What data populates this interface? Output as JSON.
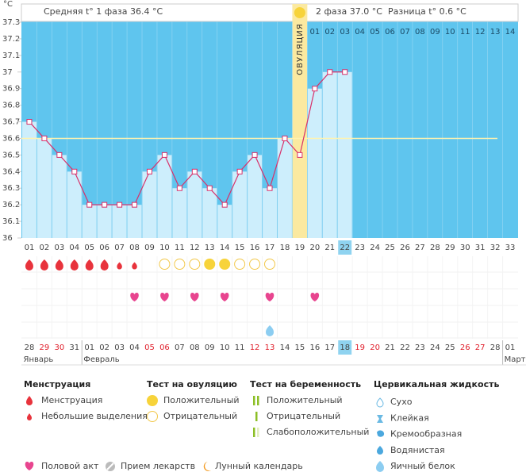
{
  "chart_data": {
    "type": "line",
    "y_unit": "°C",
    "phase1": "Средняя t° 1 фаза 36.4 °C",
    "phase2": "2 фаза 37.0 °C",
    "difference": "Разница t° 0.6 °C",
    "ovulation_label": "ОВУЛЯЦИЯ",
    "ovulation_day": 19,
    "current_day": 22,
    "categories": [
      "01",
      "02",
      "03",
      "04",
      "05",
      "06",
      "07",
      "08",
      "09",
      "10",
      "11",
      "12",
      "13",
      "14",
      "15",
      "16",
      "17",
      "18",
      "19",
      "20",
      "21",
      "22",
      "23",
      "24",
      "25",
      "26",
      "27",
      "28",
      "29",
      "30",
      "31",
      "32",
      "33"
    ],
    "values": [
      36.7,
      36.6,
      36.5,
      36.4,
      36.2,
      36.2,
      36.2,
      36.2,
      36.4,
      36.5,
      36.3,
      36.4,
      36.3,
      36.2,
      36.4,
      36.5,
      36.3,
      36.6,
      36.5,
      36.9,
      37.0,
      37.0,
      null,
      null,
      null,
      null,
      null,
      null,
      null,
      null,
      null,
      null,
      null
    ],
    "color": "#d8306a",
    "coverline": 36.6,
    "ylim": [
      36,
      37.3
    ],
    "yticks": [
      36,
      36.1,
      36.2,
      36.3,
      36.4,
      36.5,
      36.6,
      36.7,
      36.8,
      36.9,
      37,
      37.1,
      37.2,
      37.3
    ],
    "phase2_days": [
      "01",
      "02",
      "03",
      "04",
      "05",
      "06",
      "07",
      "08",
      "09",
      "10",
      "11",
      "12",
      "13",
      "14"
    ],
    "dates": [
      "28",
      "29",
      "30",
      "31",
      "01",
      "02",
      "03",
      "04",
      "05",
      "06",
      "07",
      "08",
      "09",
      "10",
      "11",
      "12",
      "13",
      "14",
      "15",
      "16",
      "17",
      "18",
      "19",
      "20",
      "21",
      "22",
      "23",
      "24",
      "25",
      "26",
      "27",
      "28",
      "01"
    ],
    "weekend_columns": [
      2,
      3,
      9,
      10,
      16,
      17,
      23,
      24,
      30,
      31
    ],
    "month_labels": [
      "Январь",
      null,
      null,
      null,
      "Февраль",
      null,
      null,
      null,
      null,
      null,
      null,
      null,
      null,
      null,
      null,
      null,
      null,
      null,
      null,
      null,
      null,
      null,
      null,
      null,
      null,
      null,
      null,
      null,
      null,
      null,
      null,
      null,
      "Март"
    ],
    "legend": [
      {
        "title": "Менструация",
        "items": [
          {
            "name": "Менструация",
            "days": [
              1,
              2,
              3,
              4,
              5,
              6
            ]
          },
          {
            "name": "Небольшие выделения",
            "days": [
              7,
              8
            ]
          }
        ]
      },
      {
        "title": "Тест на овуляцию",
        "items": [
          {
            "name": "Положительный",
            "days": [
              13,
              14
            ]
          },
          {
            "name": "Отрицательный",
            "days": [
              10,
              11,
              12,
              15,
              16,
              17
            ]
          }
        ]
      },
      {
        "title": "Тест на беременность",
        "items": [
          {
            "name": "Положительный"
          },
          {
            "name": "Отрицательный"
          },
          {
            "name": "Слабоположительный"
          }
        ]
      },
      {
        "title": "Цервикальная жидкость",
        "items": [
          {
            "name": "Сухо"
          },
          {
            "name": "Клейкая"
          },
          {
            "name": "Кремообразная"
          },
          {
            "name": "Водянистая"
          },
          {
            "name": "Яичный белок",
            "days": [
              17
            ]
          }
        ]
      },
      {
        "items": [
          {
            "name": "Половой акт",
            "days": [
              8,
              10,
              12,
              14,
              17,
              20
            ]
          },
          {
            "name": "Прием лекарств"
          },
          {
            "name": "Лунный календарь"
          }
        ]
      }
    ]
  }
}
